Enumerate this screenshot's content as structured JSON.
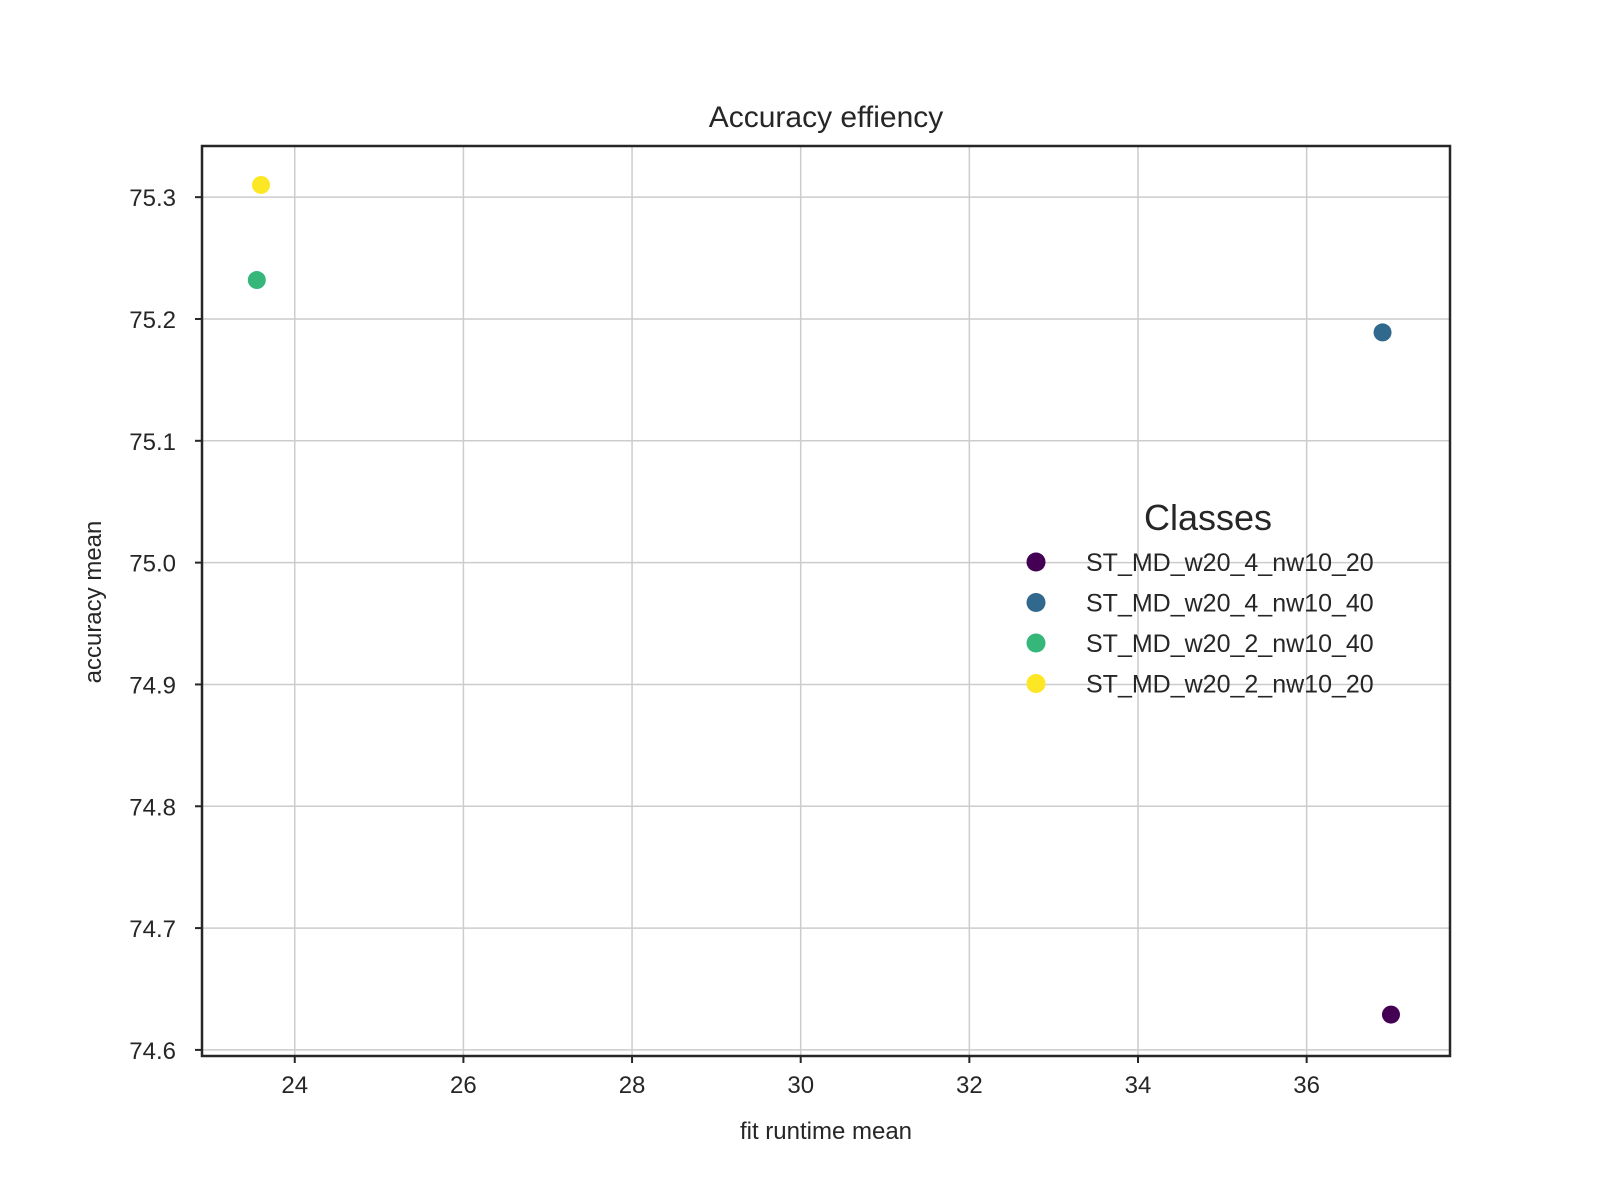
{
  "chart_data": {
    "type": "scatter",
    "title": "Accuracy effiency",
    "xlabel": "fit runtime mean",
    "ylabel": "accuracy mean",
    "xlim": [
      22.9,
      37.7
    ],
    "ylim": [
      74.595,
      75.342
    ],
    "xticks": [
      24,
      26,
      28,
      30,
      32,
      34,
      36
    ],
    "yticks": [
      74.6,
      74.7,
      74.8,
      74.9,
      75.0,
      75.1,
      75.2,
      75.3
    ],
    "grid": true,
    "legend_title": "Classes",
    "legend_position": "center-right",
    "series": [
      {
        "name": "ST_MD_w20_4_nw10_20",
        "color": "#440154",
        "x": [
          37.0
        ],
        "y": [
          74.629
        ]
      },
      {
        "name": "ST_MD_w20_4_nw10_40",
        "color": "#31688e",
        "x": [
          36.9
        ],
        "y": [
          75.189
        ]
      },
      {
        "name": "ST_MD_w20_2_nw10_40",
        "color": "#35b779",
        "x": [
          23.55
        ],
        "y": [
          75.232
        ]
      },
      {
        "name": "ST_MD_w20_2_nw10_20",
        "color": "#fde725",
        "x": [
          23.6
        ],
        "y": [
          75.31
        ]
      }
    ]
  }
}
